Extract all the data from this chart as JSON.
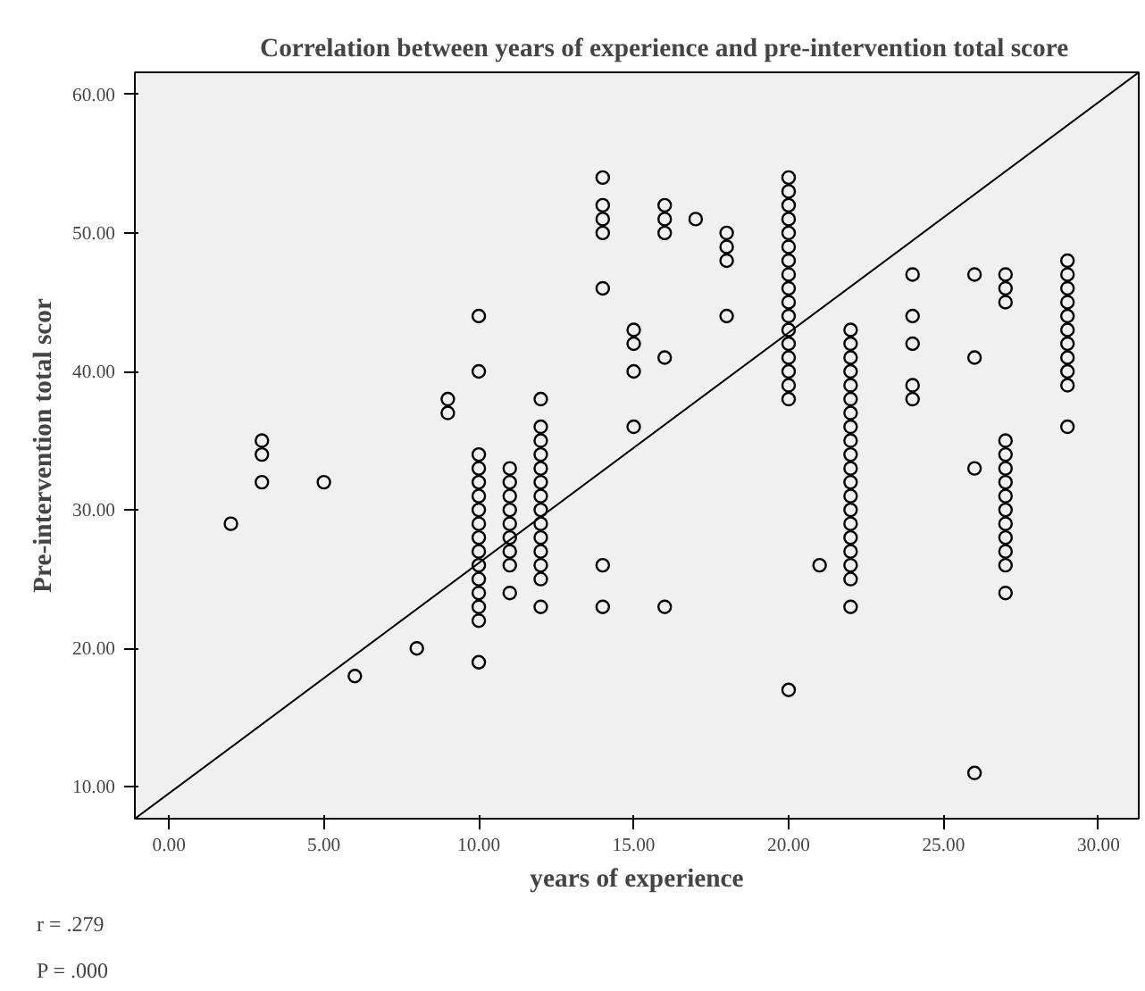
{
  "chart_data": {
    "type": "scatter",
    "title": "Correlation between years of experience and pre-intervention total score",
    "xlabel": "years of experience",
    "ylabel": "Pre-intervention total scor",
    "xlim": [
      -1.1,
      31.3
    ],
    "ylim": [
      7.7,
      61.6
    ],
    "xticks": [
      {
        "value": 0,
        "label": "0.00"
      },
      {
        "value": 5,
        "label": "5.00"
      },
      {
        "value": 10,
        "label": "10.00"
      },
      {
        "value": 15,
        "label": "15.00"
      },
      {
        "value": 20,
        "label": "20.00"
      },
      {
        "value": 25,
        "label": "25.00"
      },
      {
        "value": 30,
        "label": "30.00"
      }
    ],
    "yticks": [
      {
        "value": 10,
        "label": "10.00"
      },
      {
        "value": 20,
        "label": "20.00"
      },
      {
        "value": 30,
        "label": "30.00"
      },
      {
        "value": 40,
        "label": "40.00"
      },
      {
        "value": 50,
        "label": "50.00"
      },
      {
        "value": 60,
        "label": "60.00"
      }
    ],
    "marker": "circle",
    "grid": false,
    "annotations": [
      "r = .279",
      "P = .000"
    ],
    "series": [
      {
        "color": "#000000",
        "x": [
          2,
          3,
          3,
          3,
          5,
          6,
          8,
          9,
          9,
          10,
          10,
          10,
          10,
          10,
          10,
          10,
          10,
          10,
          10,
          10,
          10,
          10,
          10,
          10,
          10,
          11,
          11,
          11,
          11,
          11,
          11,
          11,
          11,
          11,
          12,
          12,
          12,
          12,
          12,
          12,
          12,
          12,
          12,
          12,
          12,
          12,
          12,
          12,
          14,
          14,
          14,
          14,
          14,
          14,
          14,
          15,
          15,
          15,
          15,
          16,
          16,
          16,
          16,
          16,
          17,
          18,
          18,
          18,
          18,
          20,
          20,
          20,
          20,
          20,
          20,
          20,
          20,
          20,
          20,
          20,
          20,
          20,
          20,
          20,
          20,
          20,
          20,
          21,
          22,
          22,
          22,
          22,
          22,
          22,
          22,
          22,
          22,
          22,
          22,
          22,
          22,
          22,
          22,
          22,
          22,
          22,
          22,
          22,
          24,
          24,
          24,
          24,
          24,
          26,
          26,
          26,
          26,
          27,
          27,
          27,
          27,
          27,
          27,
          27,
          27,
          27,
          27,
          27,
          27,
          27,
          27,
          29,
          29,
          29,
          29,
          29,
          29,
          29,
          29,
          29,
          29,
          29
        ],
        "values": [
          29,
          32,
          34,
          35,
          32,
          18,
          20,
          37,
          38,
          19,
          22,
          23,
          24,
          25,
          26,
          27,
          28,
          29,
          30,
          31,
          32,
          33,
          34,
          40,
          44,
          24,
          26,
          27,
          28,
          29,
          30,
          31,
          32,
          33,
          23,
          25,
          26,
          27,
          28,
          29,
          30,
          31,
          32,
          33,
          34,
          35,
          36,
          38,
          23,
          26,
          46,
          50,
          51,
          52,
          54,
          36,
          40,
          42,
          43,
          23,
          41,
          50,
          51,
          52,
          51,
          44,
          48,
          49,
          50,
          17,
          38,
          39,
          40,
          41,
          42,
          43,
          44,
          45,
          46,
          47,
          48,
          49,
          50,
          51,
          52,
          53,
          54,
          26,
          23,
          25,
          26,
          27,
          28,
          29,
          30,
          31,
          32,
          33,
          34,
          35,
          36,
          37,
          38,
          39,
          40,
          41,
          42,
          43,
          38,
          39,
          42,
          44,
          47,
          11,
          33,
          41,
          47,
          24,
          26,
          27,
          28,
          29,
          30,
          31,
          32,
          33,
          34,
          35,
          45,
          46,
          47,
          36,
          39,
          40,
          41,
          42,
          43,
          44,
          45,
          46,
          47,
          48
        ]
      },
      {
        "type": "line",
        "marker": "none",
        "color": "#000000",
        "x": [
          -1.1,
          31.3
        ],
        "values": [
          7.7,
          61.6
        ]
      }
    ]
  }
}
